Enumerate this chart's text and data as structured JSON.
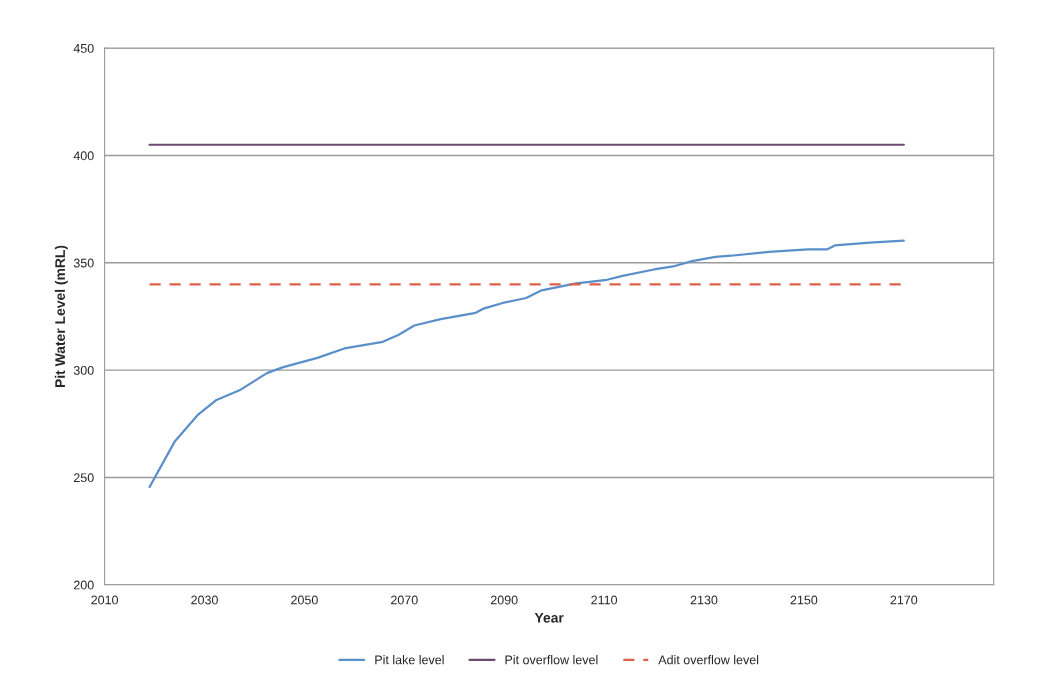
{
  "chart_data": {
    "type": "line",
    "xlabel": "Year",
    "ylabel": "Pit Water Level (mRL)",
    "xlim": [
      2010,
      2188
    ],
    "xticks": [
      2010,
      2030,
      2050,
      2070,
      2090,
      2110,
      2130,
      2150,
      2170
    ],
    "ylim": [
      200,
      450
    ],
    "yticks": [
      200,
      250,
      300,
      350,
      400,
      450
    ],
    "grid": "y",
    "legend": "bottom",
    "series": [
      {
        "name": "Pit lake level",
        "color": "#5b8fc9",
        "line_style": "solid",
        "x": [
          2019,
          2024,
          2028.6,
          2032.4,
          2037,
          2042.5,
          2045.6,
          2052.6,
          2058,
          2065.7,
          2068.8,
          2072,
          2077.3,
          2084.3,
          2086,
          2089.7,
          2094.4,
          2097.5,
          2104.4,
          2110.6,
          2113.7,
          2120,
          2123.8,
          2127.6,
          2132.3,
          2135.4,
          2143,
          2150.8,
          2154.7,
          2156.2,
          2163.2,
          2170
        ],
        "values": [
          245.6,
          266.6,
          279,
          286.1,
          290.6,
          298.6,
          301.3,
          305.7,
          310.1,
          313.2,
          316.4,
          320.8,
          323.8,
          326.7,
          328.8,
          331.3,
          333.6,
          337.2,
          340.4,
          342.1,
          343.9,
          346.9,
          348.3,
          350.8,
          352.8,
          353.3,
          355.1,
          356.3,
          356.3,
          358.1,
          359.4,
          360.3
        ]
      },
      {
        "name": "Pit overflow level",
        "color": "#6b4a6e",
        "line_style": "solid",
        "x": [
          2019,
          2170
        ],
        "values": [
          405,
          405
        ]
      },
      {
        "name": "Adit overflow level",
        "color": "#e0604a",
        "line_style": "dashed",
        "x": [
          2019,
          2170
        ],
        "values": [
          340,
          340
        ]
      }
    ]
  }
}
